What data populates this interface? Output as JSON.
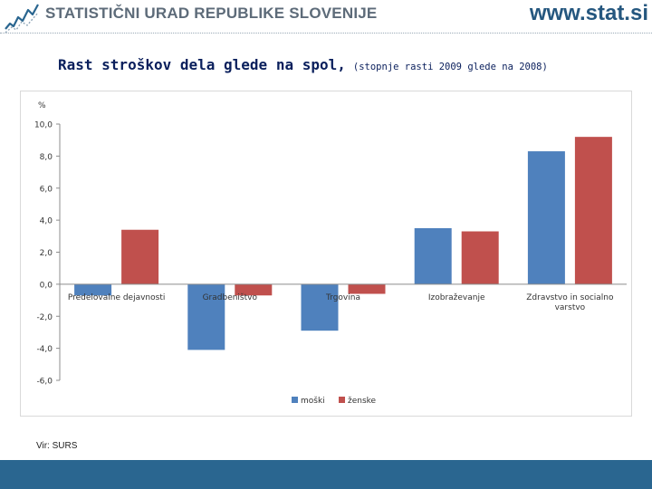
{
  "header": {
    "org_name": "STATISTIČNI URAD REPUBLIKE SLOVENIJE",
    "website": "www.stat.si"
  },
  "title": {
    "main": "Rast stroškov dela glede na spol,",
    "sub": "(stopnje rasti 2009 glede na 2008)"
  },
  "source": "Vir: SURS",
  "chart_data": {
    "type": "bar",
    "title": "Rast stroškov dela glede na spol, (stopnje rasti 2009 glede na 2008)",
    "ylabel": "%",
    "xlabel": "",
    "ylim": [
      -6,
      10
    ],
    "yticks": [
      "-6,0",
      "-4,0",
      "-2,0",
      "0,0",
      "2,0",
      "4,0",
      "6,0",
      "8,0",
      "10,0"
    ],
    "grid": false,
    "legend_position": "bottom-center",
    "categories": [
      [
        "Predelovalne dejavnosti"
      ],
      [
        "Gradbeništvo"
      ],
      [
        "Trgovina"
      ],
      [
        "Izobraževanje"
      ],
      [
        "Zdravstvo in socialno",
        "varstvo"
      ]
    ],
    "series": [
      {
        "name": "moški",
        "color": "#4f81bd",
        "values": [
          -0.7,
          -4.1,
          -2.9,
          3.5,
          8.3
        ]
      },
      {
        "name": "ženske",
        "color": "#c0504d",
        "values": [
          3.4,
          -0.7,
          -0.6,
          3.3,
          9.2
        ]
      }
    ]
  }
}
